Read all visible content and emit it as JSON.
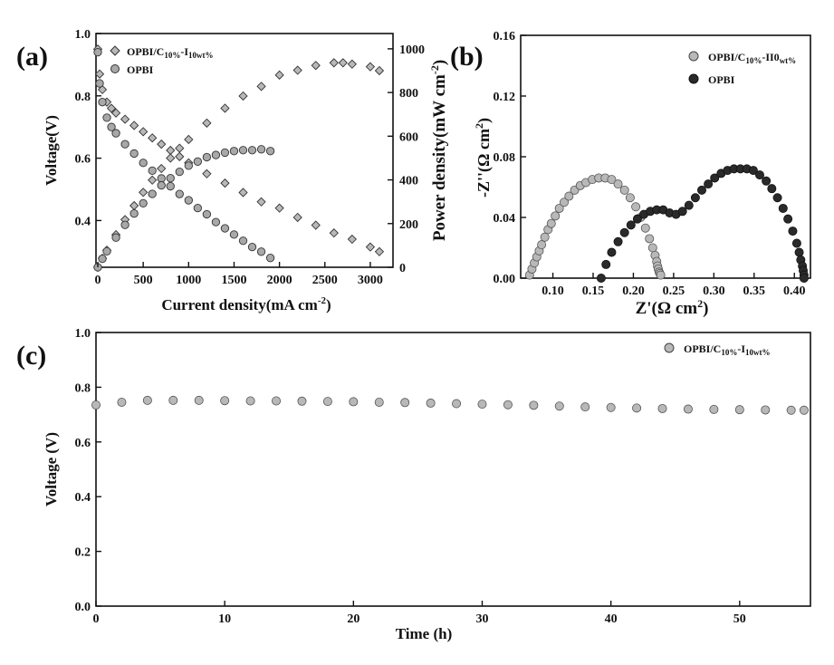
{
  "colors": {
    "axis": "#111111",
    "marker_fill": "#b8b8b8",
    "marker_stroke": "#333333",
    "marker_dark": "#2a2a2a"
  },
  "chart_data": [
    {
      "id": "a",
      "type": "scatter",
      "panel_label": "(a)",
      "xlabel": "Current density(mA cm",
      "xlabel_sup": "-2",
      "xlabel_end": ")",
      "ylabel": "Voltage(V)",
      "y2label": "Power density(mW cm",
      "y2label_sup": "-2",
      "y2label_end": ")",
      "xlim": [
        -20,
        3250
      ],
      "ylim": [
        0.25,
        1.0
      ],
      "y2lim": [
        0,
        1070
      ],
      "xticks": [
        0,
        500,
        1000,
        1500,
        2000,
        2500,
        3000
      ],
      "yticks": [
        0.4,
        0.6,
        0.8,
        1.0
      ],
      "yticklabels": [
        "0.4",
        "0.6",
        "0.8",
        "1.0"
      ],
      "y2ticks": [
        0,
        200,
        400,
        600,
        800,
        1000
      ],
      "legend_position": "top-left",
      "series": [
        {
          "name": "OPBI/C",
          "name_sub": "10%",
          "name_mid": "-I",
          "name_sub2": "10wt%",
          "marker": "diamond",
          "axis": "left",
          "kind": "voltage",
          "x": [
            0,
            20,
            50,
            100,
            150,
            200,
            300,
            400,
            500,
            600,
            700,
            800,
            900,
            1000,
            1200,
            1400,
            1600,
            1800,
            2000,
            2200,
            2400,
            2600,
            2800,
            3000,
            3100
          ],
          "y": [
            0.95,
            0.87,
            0.82,
            0.78,
            0.76,
            0.745,
            0.725,
            0.705,
            0.685,
            0.665,
            0.645,
            0.625,
            0.605,
            0.585,
            0.55,
            0.52,
            0.49,
            0.46,
            0.44,
            0.41,
            0.385,
            0.36,
            0.34,
            0.315,
            0.3
          ]
        },
        {
          "name": "OPBI/C",
          "name_sub": "10%",
          "name_mid": "-I",
          "name_sub2": "10wt%",
          "marker": "diamond",
          "axis": "right",
          "kind": "power",
          "legend": false,
          "x": [
            0,
            50,
            100,
            200,
            300,
            400,
            500,
            600,
            700,
            800,
            900,
            1000,
            1200,
            1400,
            1600,
            1800,
            2000,
            2200,
            2400,
            2600,
            2700,
            2800,
            3000,
            3100
          ],
          "y": [
            0,
            41,
            78,
            149,
            218,
            282,
            343,
            399,
            452,
            500,
            545,
            585,
            660,
            728,
            784,
            828,
            880,
            902,
            924,
            936,
            936,
            930,
            918,
            900
          ]
        },
        {
          "name": "OPBI",
          "marker": "circle",
          "axis": "left",
          "kind": "voltage",
          "x": [
            0,
            20,
            50,
            100,
            150,
            200,
            300,
            400,
            500,
            600,
            700,
            800,
            900,
            1000,
            1100,
            1200,
            1300,
            1400,
            1500,
            1600,
            1700,
            1800,
            1900
          ],
          "y": [
            0.94,
            0.84,
            0.78,
            0.73,
            0.7,
            0.68,
            0.645,
            0.615,
            0.585,
            0.56,
            0.535,
            0.51,
            0.485,
            0.465,
            0.44,
            0.42,
            0.395,
            0.375,
            0.355,
            0.335,
            0.315,
            0.3,
            0.28
          ]
        },
        {
          "name": "OPBI",
          "marker": "circle",
          "axis": "right",
          "kind": "power",
          "legend": false,
          "x": [
            0,
            50,
            100,
            200,
            300,
            400,
            500,
            600,
            700,
            800,
            900,
            1000,
            1100,
            1200,
            1300,
            1400,
            1500,
            1600,
            1700,
            1800,
            1900
          ],
          "y": [
            0,
            39,
            73,
            136,
            194,
            246,
            293,
            336,
            375,
            408,
            437,
            465,
            484,
            504,
            514,
            525,
            532,
            536,
            536,
            540,
            532
          ]
        }
      ]
    },
    {
      "id": "b",
      "type": "scatter",
      "panel_label": "(b)",
      "xlabel": "Z'(Ω cm",
      "xlabel_sup": "2",
      "xlabel_end": ")",
      "ylabel": "-Z''(Ω cm",
      "ylabel_sup": "2",
      "ylabel_end": ")",
      "xlim": [
        0.06,
        0.42
      ],
      "ylim": [
        0,
        0.16
      ],
      "xticks": [
        0.1,
        0.15,
        0.2,
        0.25,
        0.3,
        0.35,
        0.4
      ],
      "xticklabels": [
        "0.10",
        "0.15",
        "0.20",
        "0.25",
        "0.30",
        "0.35",
        "0.40"
      ],
      "yticks": [
        0,
        0.04,
        0.08,
        0.12,
        0.16
      ],
      "yticklabels": [
        "0.00",
        "0.04",
        "0.08",
        "0.12",
        "0.16"
      ],
      "legend_position": "top-right",
      "series": [
        {
          "name": "OPBI/C",
          "name_sub": "10%",
          "name_mid": "-II0",
          "name_sub2": "wt%",
          "marker": "circle-light",
          "x": [
            0.071,
            0.074,
            0.077,
            0.08,
            0.083,
            0.086,
            0.09,
            0.094,
            0.098,
            0.103,
            0.108,
            0.114,
            0.12,
            0.127,
            0.134,
            0.141,
            0.149,
            0.157,
            0.165,
            0.173,
            0.181,
            0.189,
            0.196,
            0.203,
            0.209,
            0.215,
            0.22,
            0.224,
            0.227,
            0.229,
            0.23,
            0.231,
            0.232,
            0.233,
            0.234
          ],
          "y": [
            0.002,
            0.006,
            0.01,
            0.014,
            0.018,
            0.022,
            0.027,
            0.032,
            0.036,
            0.041,
            0.046,
            0.05,
            0.054,
            0.058,
            0.061,
            0.063,
            0.065,
            0.066,
            0.066,
            0.065,
            0.062,
            0.058,
            0.053,
            0.047,
            0.04,
            0.033,
            0.026,
            0.02,
            0.015,
            0.011,
            0.008,
            0.006,
            0.004,
            0.003,
            0.002
          ]
        },
        {
          "name": "OPBI",
          "marker": "circle-dark",
          "x": [
            0.16,
            0.166,
            0.173,
            0.181,
            0.189,
            0.197,
            0.205,
            0.213,
            0.221,
            0.229,
            0.237,
            0.245,
            0.253,
            0.261,
            0.269,
            0.277,
            0.285,
            0.293,
            0.301,
            0.309,
            0.317,
            0.325,
            0.333,
            0.341,
            0.349,
            0.357,
            0.365,
            0.372,
            0.379,
            0.386,
            0.392,
            0.398,
            0.403,
            0.406,
            0.408,
            0.41,
            0.411,
            0.412,
            0.412
          ],
          "y": [
            0.0,
            0.009,
            0.017,
            0.024,
            0.03,
            0.035,
            0.039,
            0.042,
            0.044,
            0.045,
            0.045,
            0.043,
            0.042,
            0.044,
            0.048,
            0.053,
            0.058,
            0.062,
            0.066,
            0.069,
            0.071,
            0.072,
            0.072,
            0.072,
            0.071,
            0.068,
            0.064,
            0.059,
            0.053,
            0.046,
            0.039,
            0.031,
            0.023,
            0.017,
            0.012,
            0.008,
            0.005,
            0.002,
            0.0
          ]
        }
      ]
    },
    {
      "id": "c",
      "type": "scatter",
      "panel_label": "(c)",
      "xlabel": "Time (h)",
      "ylabel": "Voltage (V)",
      "xlim": [
        0,
        55.5
      ],
      "ylim": [
        0,
        1.0
      ],
      "xticks": [
        0,
        10,
        20,
        30,
        40,
        50
      ],
      "yticks": [
        0,
        0.2,
        0.4,
        0.6,
        0.8,
        1.0
      ],
      "yticklabels": [
        "0.0",
        "0.2",
        "0.4",
        "0.6",
        "0.8",
        "1.0"
      ],
      "legend_position": "top-right",
      "series": [
        {
          "name": "OPBI/C",
          "name_sub": "10%",
          "name_mid": "-I",
          "name_sub2": "10wt%",
          "marker": "circle-light",
          "x": [
            0,
            2,
            4,
            6,
            8,
            10,
            12,
            14,
            16,
            18,
            20,
            22,
            24,
            26,
            28,
            30,
            32,
            34,
            36,
            38,
            40,
            42,
            44,
            46,
            48,
            50,
            52,
            54,
            55
          ],
          "y": [
            0.735,
            0.745,
            0.752,
            0.752,
            0.752,
            0.751,
            0.75,
            0.75,
            0.749,
            0.748,
            0.747,
            0.745,
            0.744,
            0.742,
            0.74,
            0.738,
            0.736,
            0.734,
            0.731,
            0.728,
            0.726,
            0.724,
            0.722,
            0.72,
            0.719,
            0.718,
            0.717,
            0.716,
            0.716
          ]
        }
      ]
    }
  ]
}
